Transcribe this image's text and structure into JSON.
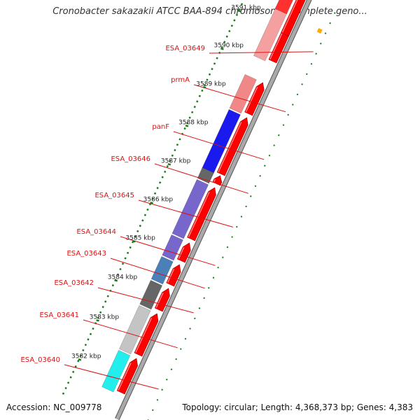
{
  "title": "Cronobacter sakazakii ATCC BAA-894 chromosome, complete geno...",
  "footer": {
    "accession": "Accession: NC_009778",
    "summary": "Topology: circular; Length: 4,368,373 bp; Genes: 4,383"
  },
  "colors": {
    "backbone": "#a9a9a9",
    "forward_strand": "#ff0000",
    "tick_marks": "#1e7a1e",
    "label_text": "#dd1111"
  },
  "ticks": [
    {
      "label": "3591 kbp"
    },
    {
      "label": "3590 kbp"
    },
    {
      "label": "3589 kbp"
    },
    {
      "label": "3588 kbp"
    },
    {
      "label": "3587 kbp"
    },
    {
      "label": "3586 kbp"
    },
    {
      "label": "3585 kbp"
    },
    {
      "label": "3584 kbp"
    },
    {
      "label": "3583 kbp"
    },
    {
      "label": "3582 kbp"
    }
  ],
  "genes": [
    {
      "label": "ESA_03649",
      "color": "#f4a0a0"
    },
    {
      "label": "prmA",
      "color": "#f08888"
    },
    {
      "label": "panF",
      "color": "#1a1aee"
    },
    {
      "label": "ESA_03646",
      "color": "#666666"
    },
    {
      "label": "ESA_03645",
      "color": "#7766cc"
    },
    {
      "label": "ESA_03644",
      "color": "#7766cc"
    },
    {
      "label": "ESA_03643",
      "color": "#4a7fb8"
    },
    {
      "label": "ESA_03642",
      "color": "#666666"
    },
    {
      "label": "ESA_03641",
      "color": "#c4c4c4"
    },
    {
      "label": "ESA_03640",
      "color": "#22eeee"
    }
  ]
}
